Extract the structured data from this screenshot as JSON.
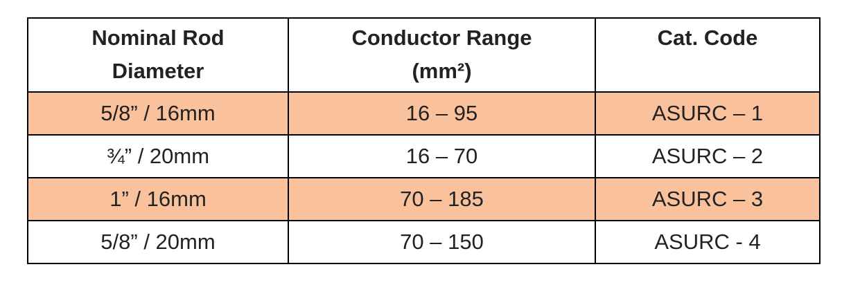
{
  "table": {
    "header": [
      [
        "Nominal Rod",
        "Diameter"
      ],
      [
        "Conductor Range",
        "(mm²)"
      ],
      [
        "Cat. Code"
      ]
    ],
    "rows": [
      [
        "5/8” / 16mm",
        "16 – 95",
        "ASURC – 1"
      ],
      [
        "¾”  / 20mm",
        "16 – 70",
        "ASURC – 2"
      ],
      [
        "1”  / 16mm",
        "70 – 185",
        "ASURC – 3"
      ],
      [
        "5/8” / 20mm",
        "70 – 150",
        "ASURC - 4"
      ]
    ]
  }
}
